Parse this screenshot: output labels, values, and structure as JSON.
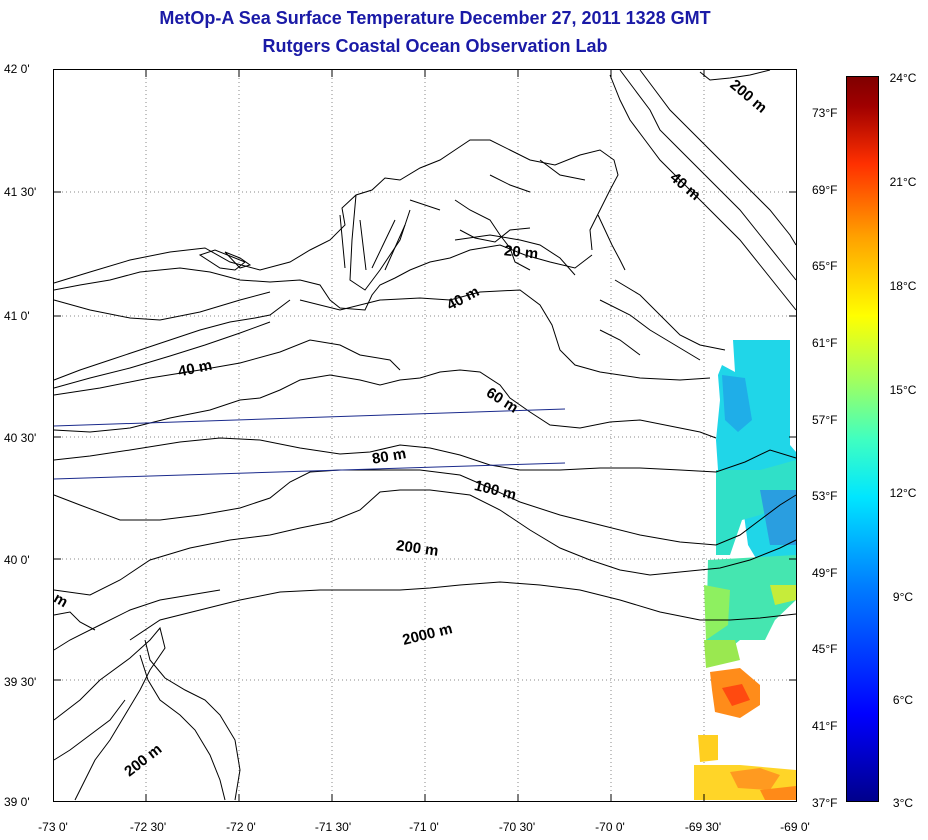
{
  "title": {
    "line1": "MetOp-A Sea Surface Temperature December 27, 2011 1328 GMT",
    "line2": "Rutgers Coastal Ocean Observation Lab"
  },
  "lat_labels": [
    "42 0'",
    "41 30'",
    "41 0'",
    "40 30'",
    "40 0'",
    "39 30'",
    "39 0'"
  ],
  "lon_labels": [
    "-73 0'",
    "-72 30'",
    "-72 0'",
    "-71 30'",
    "-71 0'",
    "-70 30'",
    "-70 0'",
    "-69 30'",
    "-69 0'"
  ],
  "fahrenheit_labels": [
    "73°F",
    "69°F",
    "65°F",
    "61°F",
    "57°F",
    "53°F",
    "49°F",
    "45°F",
    "41°F",
    "37°F"
  ],
  "celsius_labels": [
    "24°C",
    "21°C",
    "18°C",
    "15°C",
    "12°C",
    "9°C",
    "6°C",
    "3°C"
  ],
  "contours": [
    "200 m",
    "40 m",
    "20 m",
    "40 m",
    "40 m",
    "60 m",
    "80 m",
    "100 m",
    "200 m",
    "2000 m",
    "200 m",
    "m"
  ],
  "colors": {
    "title": "#1a1aa6",
    "coast": "#000000",
    "track": "#1a2a8c",
    "grid": "#888888"
  }
}
